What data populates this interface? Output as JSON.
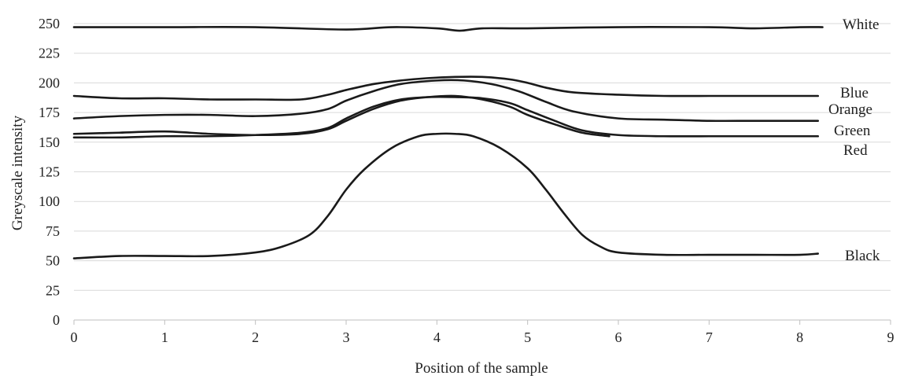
{
  "chart_data": {
    "type": "line",
    "title": "",
    "xlabel": "Position of the sample",
    "ylabel": "Greyscale intensity",
    "xlim": [
      0,
      9
    ],
    "ylim": [
      0,
      250
    ],
    "x_ticks": [
      "0",
      "1",
      "2",
      "3",
      "4",
      "5",
      "6",
      "7",
      "8",
      "9"
    ],
    "y_ticks": [
      "0",
      "25",
      "50",
      "75",
      "100",
      "125",
      "150",
      "175",
      "200",
      "225",
      "250"
    ],
    "grid": true,
    "line_color": "#1a1a1a",
    "series": [
      {
        "name": "White",
        "x": [
          0,
          1,
          2,
          3,
          3.5,
          4,
          4.25,
          4.5,
          5,
          6,
          7,
          7.5,
          8,
          8.25
        ],
        "y": [
          247,
          247,
          247,
          245,
          247,
          246,
          244,
          246,
          246,
          247,
          247,
          246,
          247,
          247
        ]
      },
      {
        "name": "Blue",
        "x": [
          0,
          0.5,
          1,
          1.5,
          2,
          2.5,
          2.8,
          3,
          3.3,
          3.6,
          3.9,
          4.2,
          4.5,
          4.8,
          5,
          5.2,
          5.5,
          6,
          6.5,
          7,
          7.5,
          8,
          8.2
        ],
        "y": [
          189,
          187,
          187,
          186,
          186,
          186,
          190,
          194,
          199,
          202,
          204,
          205,
          205,
          203,
          200,
          196,
          192,
          190,
          189,
          189,
          189,
          189,
          189
        ]
      },
      {
        "name": "Orange",
        "x": [
          0,
          0.5,
          1,
          1.5,
          2,
          2.5,
          2.8,
          3,
          3.3,
          3.6,
          4,
          4.3,
          4.6,
          4.9,
          5.2,
          5.5,
          6,
          6.5,
          7,
          7.5,
          8,
          8.2
        ],
        "y": [
          170,
          172,
          173,
          173,
          172,
          174,
          178,
          185,
          193,
          199,
          202,
          202,
          199,
          193,
          184,
          176,
          170,
          169,
          168,
          168,
          168,
          168
        ]
      },
      {
        "name": "Green",
        "x": [
          0,
          0.5,
          1,
          1.5,
          2,
          2.5,
          2.8,
          3,
          3.3,
          3.6,
          3.9,
          4.2,
          4.5,
          4.8,
          5,
          5.3,
          5.6,
          5.9
        ],
        "y": [
          157,
          158,
          159,
          157,
          156,
          157,
          161,
          168,
          178,
          185,
          188,
          189,
          186,
          180,
          173,
          165,
          158,
          155
        ]
      },
      {
        "name": "Red",
        "x": [
          0,
          0.5,
          1,
          1.5,
          2,
          2.5,
          2.8,
          3,
          3.3,
          3.6,
          3.9,
          4.2,
          4.5,
          4.8,
          5,
          5.3,
          5.6,
          6,
          6.5,
          7,
          7.5,
          8,
          8.2
        ],
        "y": [
          154,
          154,
          155,
          155,
          156,
          158,
          162,
          170,
          180,
          186,
          188,
          188,
          187,
          183,
          177,
          168,
          160,
          156,
          155,
          155,
          155,
          155,
          155
        ]
      },
      {
        "name": "Black",
        "x": [
          0,
          0.5,
          1,
          1.5,
          2,
          2.3,
          2.6,
          2.8,
          3,
          3.2,
          3.5,
          3.8,
          4,
          4.2,
          4.4,
          4.7,
          5,
          5.2,
          5.4,
          5.6,
          5.8,
          6,
          6.5,
          7,
          7.5,
          8,
          8.2
        ],
        "y": [
          52,
          54,
          54,
          54,
          57,
          62,
          72,
          88,
          110,
          127,
          145,
          155,
          157,
          157,
          155,
          145,
          128,
          110,
          90,
          72,
          62,
          57,
          55,
          55,
          55,
          55,
          56
        ]
      }
    ]
  }
}
